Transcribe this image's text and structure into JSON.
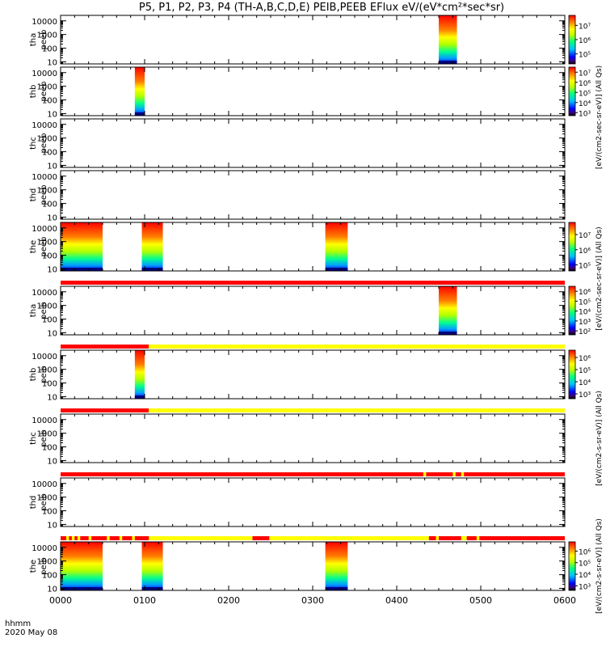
{
  "chart_data": {
    "type": "heatmap",
    "title": "P5, P1, P2, P3, P4 (TH-A,B,C,D,E) PEIB,PEEB EFlux eV/(eV*cm²*sec*sr)",
    "x_ticks": [
      "0000",
      "0100",
      "0200",
      "0300",
      "0400",
      "0500",
      "0600"
    ],
    "x_range_minutes": [
      0,
      360
    ],
    "x_footer": [
      "hhmm",
      "2020 May 08"
    ],
    "y_scale": "log",
    "y_ticks": [
      "10",
      "100",
      "1000",
      "10000"
    ],
    "panels": [
      {
        "id": "tha-peeb",
        "label": [
          "tha",
          "peeb"
        ],
        "bursts": [
          [
            270,
            283
          ]
        ],
        "colorbar": {
          "ticks": [
            "10⁵",
            "10⁶",
            "10⁷"
          ],
          "exp_min": 4.3,
          "exp_max": 7.7
        }
      },
      {
        "id": "thb-peeb",
        "label": [
          "thb",
          "peeb"
        ],
        "bursts": [
          [
            53,
            60
          ]
        ],
        "colorbar": {
          "ticks": [
            "10³",
            "10⁴",
            "10⁵",
            "10⁶",
            "10⁷"
          ],
          "exp_min": 2.7,
          "exp_max": 7.5
        }
      },
      {
        "id": "thc-peeb",
        "label": [
          "thc",
          "peeb"
        ],
        "bursts": []
      },
      {
        "id": "thd-peeb",
        "label": [
          "thd",
          "peeb"
        ],
        "bursts": []
      },
      {
        "id": "the-peeb",
        "label": [
          "the",
          "peeb"
        ],
        "bursts": [
          [
            0,
            30
          ],
          [
            58,
            73
          ],
          [
            189,
            205
          ]
        ],
        "colorbar": {
          "ticks": [
            "10⁵",
            "10⁶",
            "10⁷"
          ],
          "exp_min": 4.6,
          "exp_max": 7.8
        }
      },
      {
        "id": "tha-peib",
        "label": [
          "tha",
          "peib"
        ],
        "bursts": [
          [
            270,
            283
          ]
        ],
        "colorbar": {
          "ticks": [
            "10²",
            "10³",
            "10⁴",
            "10⁵",
            "10⁶"
          ],
          "exp_min": 1.6,
          "exp_max": 6.5
        }
      },
      {
        "id": "thb-peib",
        "label": [
          "thb",
          "peib"
        ],
        "bursts": [
          [
            53,
            60
          ]
        ],
        "colorbar": {
          "ticks": [
            "10³",
            "10⁴",
            "10⁵",
            "10⁶"
          ],
          "exp_min": 2.6,
          "exp_max": 6.6
        }
      },
      {
        "id": "thc-peib",
        "label": [
          "thc",
          "peib"
        ],
        "bursts": []
      },
      {
        "id": "thd-peib",
        "label": [
          "thd",
          "peib"
        ],
        "bursts": []
      },
      {
        "id": "the-peib",
        "label": [
          "the",
          "peib"
        ],
        "bursts": [
          [
            0,
            30
          ],
          [
            58,
            73
          ],
          [
            189,
            205
          ]
        ],
        "colorbar": {
          "ticks": [
            "10³",
            "10⁴",
            "10⁵",
            "10⁶"
          ],
          "exp_min": 2.6,
          "exp_max": 6.8
        }
      }
    ],
    "mode_bars": [
      {
        "after_panel": 4,
        "segments": [
          {
            "from": 0,
            "to": 360,
            "color": "#ff0000"
          }
        ]
      },
      {
        "after_panel": 5,
        "segments": [
          {
            "from": 0,
            "to": 63,
            "color": "#ff0000"
          },
          {
            "from": 63,
            "to": 360,
            "color": "#ffff00"
          }
        ]
      },
      {
        "after_panel": 6,
        "segments": [
          {
            "from": 0,
            "to": 63,
            "color": "#ff0000"
          },
          {
            "from": 63,
            "to": 360,
            "color": "#ffff00"
          }
        ]
      },
      {
        "after_panel": 7,
        "segments": [
          {
            "from": 0,
            "to": 360,
            "color": "#ff0000"
          },
          {
            "from": 259,
            "to": 261,
            "color": "#ffff00"
          },
          {
            "from": 280,
            "to": 282,
            "color": "#ffff00"
          },
          {
            "from": 286,
            "to": 288,
            "color": "#ffff00"
          }
        ]
      },
      {
        "after_panel": 8,
        "segments": [
          {
            "from": 0,
            "to": 360,
            "color": "#ff0000"
          },
          {
            "from": 4,
            "to": 6,
            "color": "#ffff00"
          },
          {
            "from": 8,
            "to": 10,
            "color": "#ffff00"
          },
          {
            "from": 12,
            "to": 14,
            "color": "#ffff00"
          },
          {
            "from": 20,
            "to": 22,
            "color": "#ffff00"
          },
          {
            "from": 33,
            "to": 35,
            "color": "#ffff00"
          },
          {
            "from": 42,
            "to": 44,
            "color": "#ffff00"
          },
          {
            "from": 51,
            "to": 53,
            "color": "#ffff00"
          },
          {
            "from": 63,
            "to": 137,
            "color": "#ffff00"
          },
          {
            "from": 149,
            "to": 263,
            "color": "#ffff00"
          },
          {
            "from": 268,
            "to": 270,
            "color": "#ffff00"
          },
          {
            "from": 286,
            "to": 290,
            "color": "#ffff00"
          },
          {
            "from": 297,
            "to": 299,
            "color": "#ffff00"
          }
        ]
      }
    ],
    "colorbar_axis_labels": [
      {
        "text": "[eV/(cm2-sec-sr-eV)] (All Qs)",
        "span_panels": [
          0,
          3
        ]
      },
      {
        "text": "[eV/(cm2-sec-sr-eV)] (All Qs)",
        "span_panels": [
          4,
          5
        ]
      },
      {
        "text": "[eV/(cm2-s-sr-eV)] (All Qs)",
        "span_panels": [
          6,
          8
        ]
      },
      {
        "text": "[eV/(cm2-s-sr-eV)] (All Qs)",
        "span_panels": [
          9,
          9
        ]
      }
    ],
    "colors": {
      "frame": "#000000",
      "background": "#ffffff",
      "modebar_red": "#ff0000",
      "modebar_yellow": "#ffff00"
    }
  }
}
